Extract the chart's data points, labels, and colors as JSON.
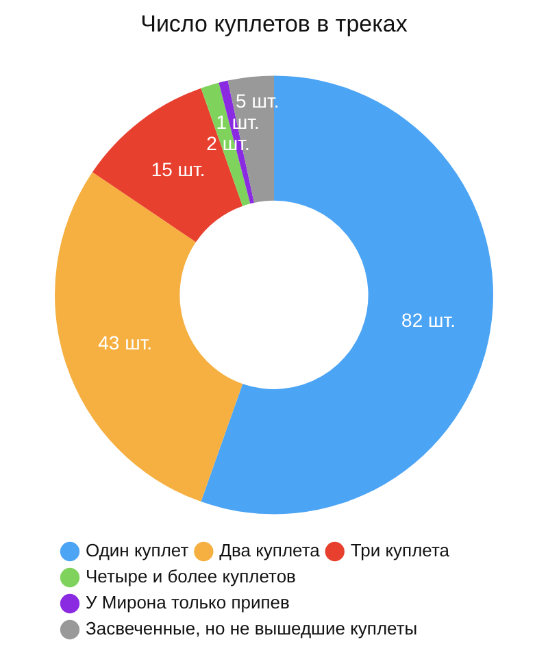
{
  "chart_data": {
    "type": "donut",
    "title": "Число куплетов в треках",
    "categories": [
      "Один куплет",
      "Два куплета",
      "Три куплета",
      "Четыре и более куплетов",
      "У Мирона только припев",
      "Засвеченные, но не вышедшие куплеты"
    ],
    "values": [
      82,
      43,
      15,
      2,
      1,
      5
    ],
    "colors": [
      "#4ca4f5",
      "#f5b041",
      "#e8402f",
      "#7fd35c",
      "#8a2be2",
      "#999999"
    ],
    "value_labels": [
      "82 шт.",
      "43 шт.",
      "15 шт.",
      "2 шт.",
      "1 шт.",
      "5 шт."
    ],
    "legend": "bottom"
  }
}
